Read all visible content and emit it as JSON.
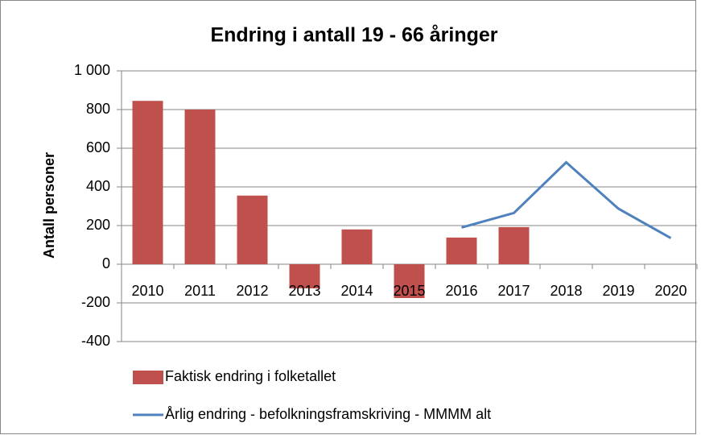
{
  "chart_data": {
    "type": "combo",
    "title": "Endring i antall 19 - 66 åringer",
    "y_label": "Antall personer",
    "categories": [
      "2010",
      "2011",
      "2012",
      "2013",
      "2014",
      "2015",
      "2016",
      "2017",
      "2018",
      "2019",
      "2020"
    ],
    "series": [
      {
        "name": "Faktisk endring i folketallet",
        "type": "bar",
        "color": "#c0504d",
        "values": [
          845,
          800,
          355,
          -125,
          180,
          -175,
          138,
          192,
          null,
          null,
          null
        ]
      },
      {
        "name": "Årlig endring - befolkningsframskriving - MMMM alt",
        "type": "line",
        "color": "#4f81bd",
        "values": [
          null,
          null,
          null,
          null,
          null,
          null,
          190,
          265,
          527,
          287,
          135
        ]
      }
    ],
    "ylim": [
      -400,
      1000
    ],
    "yticks": [
      -400,
      -200,
      0,
      200,
      400,
      600,
      800,
      {
        "value": 1000,
        "label": "1 000"
      }
    ],
    "grid": true
  }
}
